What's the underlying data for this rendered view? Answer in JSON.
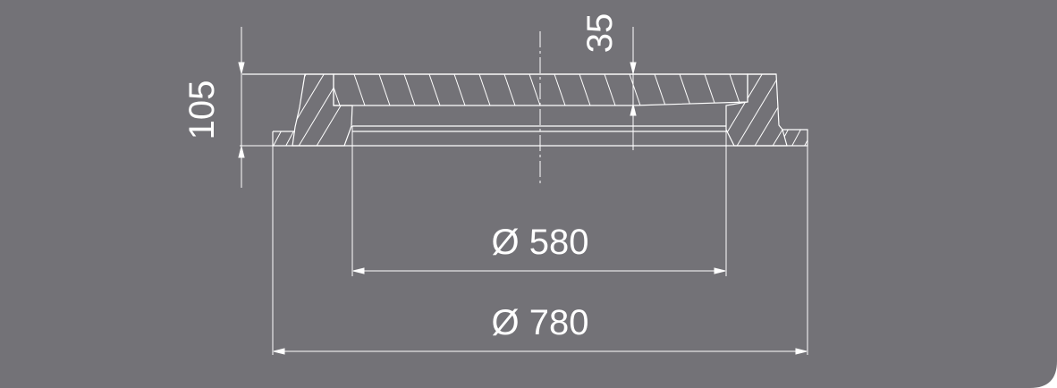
{
  "drawing": {
    "background_color": "#737277",
    "line_color": "#ffffff",
    "dimensions": {
      "outer_diameter": "Ø 780",
      "inner_diameter": "Ø 580",
      "total_height": "105",
      "lid_thickness": "35"
    }
  }
}
